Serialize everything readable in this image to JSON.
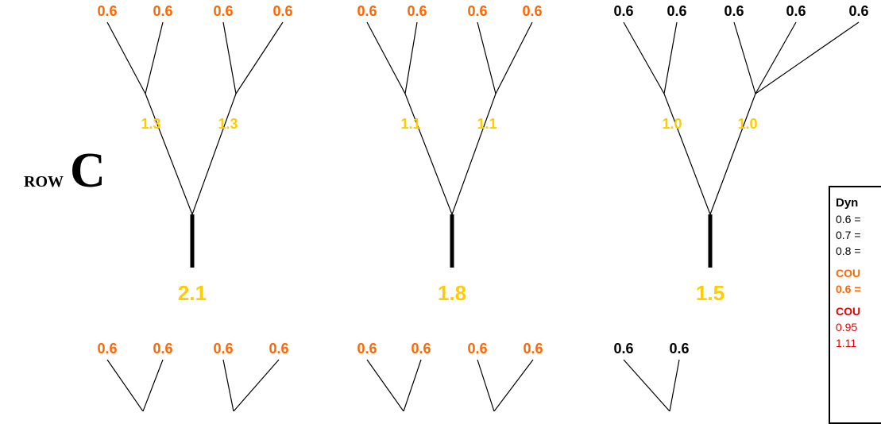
{
  "colors": {
    "orange": "#ff6600",
    "gold": "#ffcc00",
    "black": "#000000",
    "red": "#e60000"
  },
  "row_label": {
    "prefix": "ROW",
    "letter": "C"
  },
  "top_row": {
    "trees": [
      {
        "leaves": [
          "0.6",
          "0.6",
          "0.6",
          "0.6"
        ],
        "leaf_color": "orange",
        "mid": [
          "1.3",
          "1.3"
        ],
        "root": "2.1"
      },
      {
        "leaves": [
          "0.6",
          "0.6",
          "0.6",
          "0.6"
        ],
        "leaf_color": "orange",
        "mid": [
          "1.1",
          "1.1"
        ],
        "root": "1.8"
      },
      {
        "leaves": [
          "0.6",
          "0.6",
          "0.6",
          "0.6",
          "0.6"
        ],
        "leaf_color": "black",
        "mid": [
          "1.0",
          "1.0"
        ],
        "root": "1.5"
      }
    ]
  },
  "bottom_row": {
    "groups": [
      {
        "leaves": [
          "0.6",
          "0.6"
        ],
        "leaf_color": "orange"
      },
      {
        "leaves": [
          "0.6",
          "0.6"
        ],
        "leaf_color": "orange"
      },
      {
        "leaves": [
          "0.6",
          "0.6"
        ],
        "leaf_color": "orange"
      },
      {
        "leaves": [
          "0.6",
          "0.6"
        ],
        "leaf_color": "orange"
      },
      {
        "leaves": [
          "0.6",
          "0.6"
        ],
        "leaf_color": "black"
      }
    ]
  },
  "legend": {
    "heading": "Dyn",
    "lines": [
      "0.6 =",
      "0.7 =",
      "0.8 ="
    ],
    "orange_heading": "COU",
    "orange_value": "0.6 =",
    "red_heading": "COU",
    "red_lines": [
      "0.95",
      "1.11"
    ]
  }
}
